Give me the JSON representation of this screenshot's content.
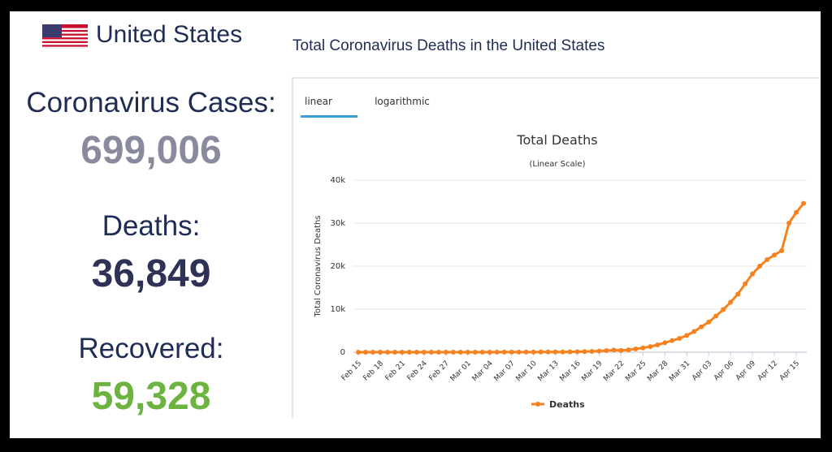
{
  "header": {
    "country": "United States",
    "chart_heading": "Total Coronavirus Deaths in the United States"
  },
  "stats": [
    {
      "label": "Coronavirus Cases:",
      "value": "699,006"
    },
    {
      "label": "Deaths:",
      "value": "36,849"
    },
    {
      "label": "Recovered:",
      "value": "59,328"
    }
  ],
  "tabs": [
    "linear",
    "logarithmic"
  ],
  "chart_data": {
    "type": "line",
    "title": "Total Deaths",
    "subtitle": "(Linear Scale)",
    "y_label": "Total Coronavirus Deaths",
    "categories": [
      "Feb 15",
      null,
      null,
      "Feb 18",
      null,
      null,
      "Feb 21",
      null,
      null,
      "Feb 24",
      null,
      null,
      "Feb 27",
      null,
      null,
      "Mar 01",
      null,
      null,
      "Mar 04",
      null,
      null,
      "Mar 07",
      null,
      null,
      "Mar 10",
      null,
      null,
      "Mar 13",
      null,
      null,
      "Mar 16",
      null,
      null,
      "Mar 19",
      null,
      null,
      "Mar 22",
      null,
      null,
      "Mar 25",
      null,
      null,
      "Mar 28",
      null,
      null,
      "Mar 31",
      null,
      null,
      "Apr 03",
      null,
      null,
      "Apr 06",
      null,
      null,
      "Apr 09",
      null,
      null,
      "Apr 12",
      null,
      null,
      "Apr 15",
      null
    ],
    "series": [
      {
        "name": "Deaths",
        "color": "#f5821f",
        "values": [
          0,
          0,
          0,
          0,
          0,
          0,
          0,
          0,
          0,
          0,
          0,
          0,
          0,
          0,
          1,
          1,
          6,
          9,
          11,
          12,
          15,
          19,
          22,
          26,
          30,
          38,
          41,
          48,
          58,
          73,
          99,
          133,
          190,
          266,
          370,
          498,
          400,
          550,
          750,
          1000,
          1300,
          1700,
          2200,
          2700,
          3200,
          3900,
          4800,
          5900,
          7000,
          8400,
          9900,
          11600,
          13500,
          15900,
          18200,
          20000,
          21500,
          22600,
          23600,
          30000,
          32500,
          34600
        ]
      }
    ],
    "ylim": [
      0,
      40000
    ],
    "yticks": [
      0,
      {
        "value": 10000,
        "label": "10k"
      },
      {
        "value": 20000,
        "label": "20k"
      },
      {
        "value": 30000,
        "label": "30k"
      },
      {
        "value": 40000,
        "label": "40k"
      }
    ],
    "grid": true,
    "legend": "bottom"
  }
}
